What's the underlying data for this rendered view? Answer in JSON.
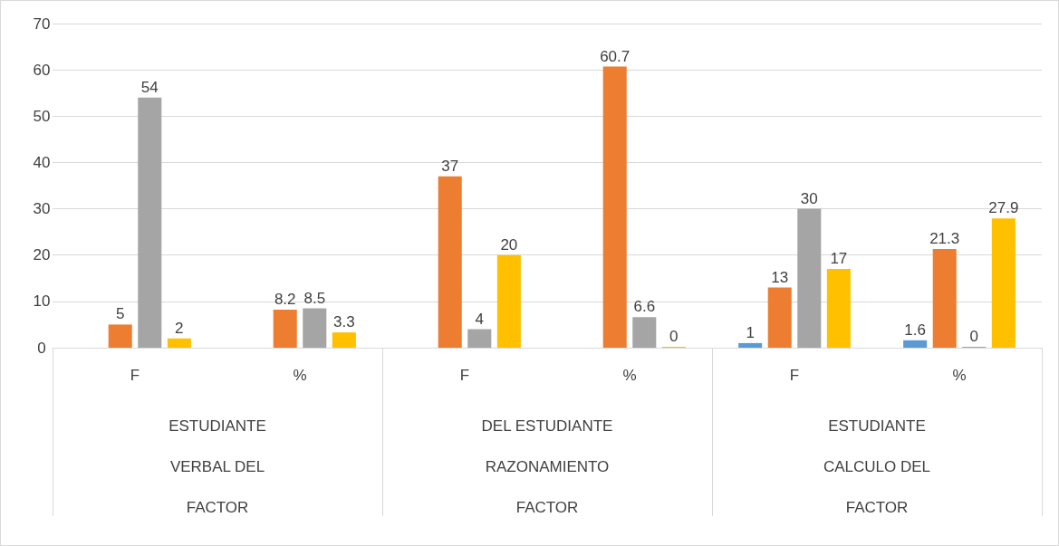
{
  "chart_data": {
    "type": "bar",
    "categories": [
      "F",
      "%",
      "F",
      "%",
      "F",
      "%"
    ],
    "series": [
      {
        "color": "#5b9bd5",
        "values": [
          null,
          null,
          null,
          null,
          1,
          1.6
        ]
      },
      {
        "color": "#ed7d31",
        "values": [
          5,
          8.2,
          37,
          60.7,
          13,
          21.3
        ]
      },
      {
        "color": "#a5a5a5",
        "values": [
          54,
          8.5,
          4,
          6.6,
          30,
          0
        ]
      },
      {
        "color": "#ffc000",
        "values": [
          2,
          3.3,
          20,
          0,
          17,
          27.9
        ]
      }
    ],
    "annotations": [
      "ESTUDIANTE\nVERBAL DEL\nFACTOR",
      "DEL ESTUDIANTE\nRAZONAMIENTO\nFACTOR",
      "ESTUDIANTE\nCALCULO DEL\nFACTOR"
    ],
    "ylim": [
      0,
      70
    ],
    "yticks": [
      0,
      10,
      20,
      30,
      40,
      50,
      60,
      70
    ],
    "grid": "y",
    "data_labels": true
  }
}
